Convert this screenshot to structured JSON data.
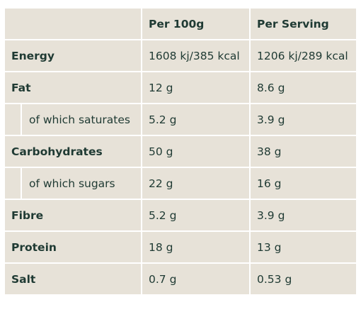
{
  "table": {
    "headers": [
      "",
      "Per 100g",
      "Per Serving"
    ],
    "rows": [
      {
        "label": "Energy",
        "per100": "1608 kj/385 kcal",
        "serving": "1206 kj/289 kcal",
        "sub": false
      },
      {
        "label": "Fat",
        "per100": "12 g",
        "serving": "8.6 g",
        "sub": false
      },
      {
        "label": "of which saturates",
        "per100": "5.2 g",
        "serving": "3.9 g",
        "sub": true
      },
      {
        "label": "Carbohydrates",
        "per100": "50 g",
        "serving": "38 g",
        "sub": false
      },
      {
        "label": "of which sugars",
        "per100": "22 g",
        "serving": "16 g",
        "sub": true
      },
      {
        "label": "Fibre",
        "per100": "5.2 g",
        "serving": "3.9 g",
        "sub": false
      },
      {
        "label": "Protein",
        "per100": "18 g",
        "serving": "13 g",
        "sub": false
      },
      {
        "label": "Salt",
        "per100": "0.7 g",
        "serving": "0.53 g",
        "sub": false
      }
    ]
  },
  "colors": {
    "cell_background": "#e7e2d8",
    "border": "#ffffff",
    "text": "#1f3a33"
  }
}
